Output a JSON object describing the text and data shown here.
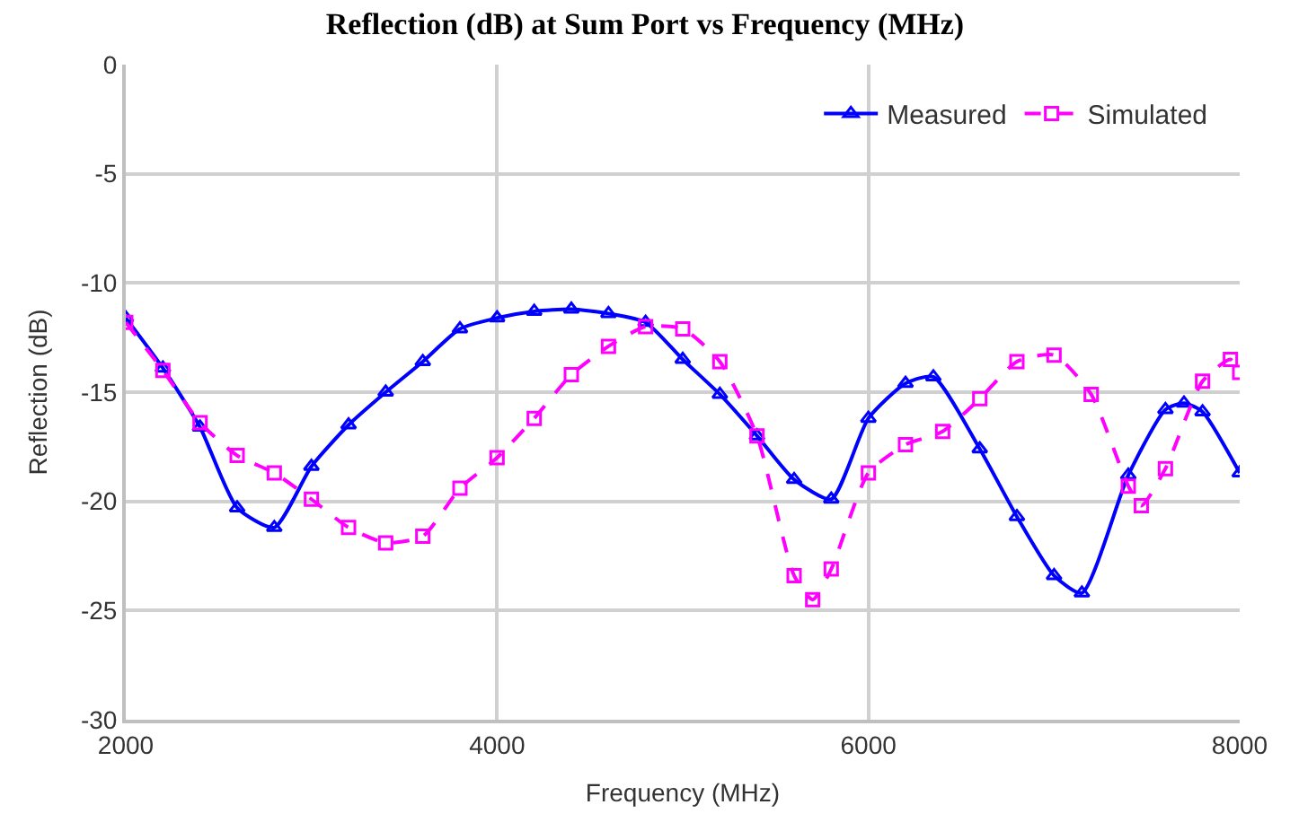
{
  "chart_data": {
    "type": "line",
    "title": "Reflection (dB) at Sum Port vs Frequency (MHz)",
    "xlabel": "Frequency (MHz)",
    "ylabel": "Reflection (dB)",
    "xlim": [
      2000,
      8000
    ],
    "xticks": [
      2000,
      4000,
      6000,
      8000
    ],
    "ylim": [
      -30,
      0
    ],
    "yticks": [
      -30,
      -25,
      -20,
      -15,
      -10,
      -5,
      0
    ],
    "grid": true,
    "legend": "top right",
    "series": [
      {
        "name": "Measured",
        "color": "#0000ff",
        "marker": "triangle",
        "line_style": "solid",
        "x": [
          2000,
          2200,
          2400,
          2600,
          2800,
          3000,
          3200,
          3400,
          3600,
          3800,
          4000,
          4200,
          4400,
          4600,
          4800,
          5000,
          5200,
          5400,
          5600,
          5800,
          6000,
          6200,
          6350,
          6600,
          6800,
          7000,
          7150,
          7400,
          7600,
          7700,
          7800,
          8000
        ],
        "values": [
          -11.6,
          -13.9,
          -16.6,
          -20.3,
          -21.2,
          -18.4,
          -16.5,
          -15.0,
          -13.6,
          -12.1,
          -11.6,
          -11.3,
          -11.2,
          -11.4,
          -11.8,
          -13.5,
          -15.1,
          -17.0,
          -19.0,
          -19.9,
          -16.2,
          -14.6,
          -14.3,
          -17.6,
          -20.7,
          -23.4,
          -24.2,
          -18.8,
          -15.8,
          -15.5,
          -15.9,
          -18.7
        ]
      },
      {
        "name": "Simulated",
        "color": "#ff00ff",
        "marker": "square",
        "line_style": "dashed",
        "x": [
          2000,
          2200,
          2400,
          2600,
          2800,
          3000,
          3200,
          3400,
          3600,
          3800,
          4000,
          4200,
          4400,
          4600,
          4800,
          5000,
          5200,
          5400,
          5600,
          5700,
          5800,
          6000,
          6200,
          6400,
          6600,
          6800,
          7000,
          7200,
          7400,
          7470,
          7600,
          7800,
          7950,
          8000
        ],
        "values": [
          -11.8,
          -14.0,
          -16.4,
          -17.9,
          -18.7,
          -19.9,
          -21.2,
          -21.9,
          -21.6,
          -19.4,
          -18.0,
          -16.2,
          -14.2,
          -12.9,
          -12.0,
          -12.1,
          -13.6,
          -17.0,
          -23.4,
          -24.5,
          -23.1,
          -18.7,
          -17.4,
          -16.8,
          -15.3,
          -13.6,
          -13.3,
          -15.1,
          -19.3,
          -20.2,
          -18.5,
          -14.5,
          -13.5,
          -14.1
        ]
      }
    ]
  }
}
